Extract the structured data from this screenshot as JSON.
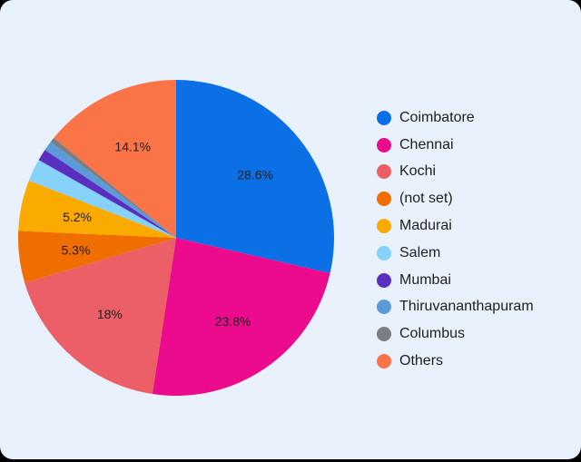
{
  "chart_data": {
    "type": "pie",
    "slices": [
      {
        "name": "Coimbatore",
        "value": 28.6,
        "label": "28.6%",
        "color": "#0b6fe6"
      },
      {
        "name": "Chennai",
        "value": 23.8,
        "label": "23.8%",
        "color": "#eb0b8c"
      },
      {
        "name": "Kochi",
        "value": 18,
        "label": "18%",
        "color": "#ec5f67"
      },
      {
        "name": "(not set)",
        "value": 5.3,
        "label": "5.3%",
        "color": "#f06d00"
      },
      {
        "name": "Madurai",
        "value": 5.2,
        "label": "5.2%",
        "color": "#fbab00"
      },
      {
        "name": "Salem",
        "value": 2.3,
        "label": "",
        "color": "#87d2fb"
      },
      {
        "name": "Mumbai",
        "value": 1.2,
        "label": "",
        "color": "#5a2fc0"
      },
      {
        "name": "Thiruvananthapuram",
        "value": 1.0,
        "label": "",
        "color": "#5b9bd9"
      },
      {
        "name": "Columbus",
        "value": 0.5,
        "label": "",
        "color": "#7b7f83"
      },
      {
        "name": "Others",
        "value": 14.1,
        "label": "14.1%",
        "color": "#fb7448"
      }
    ],
    "legend_position": "right"
  }
}
